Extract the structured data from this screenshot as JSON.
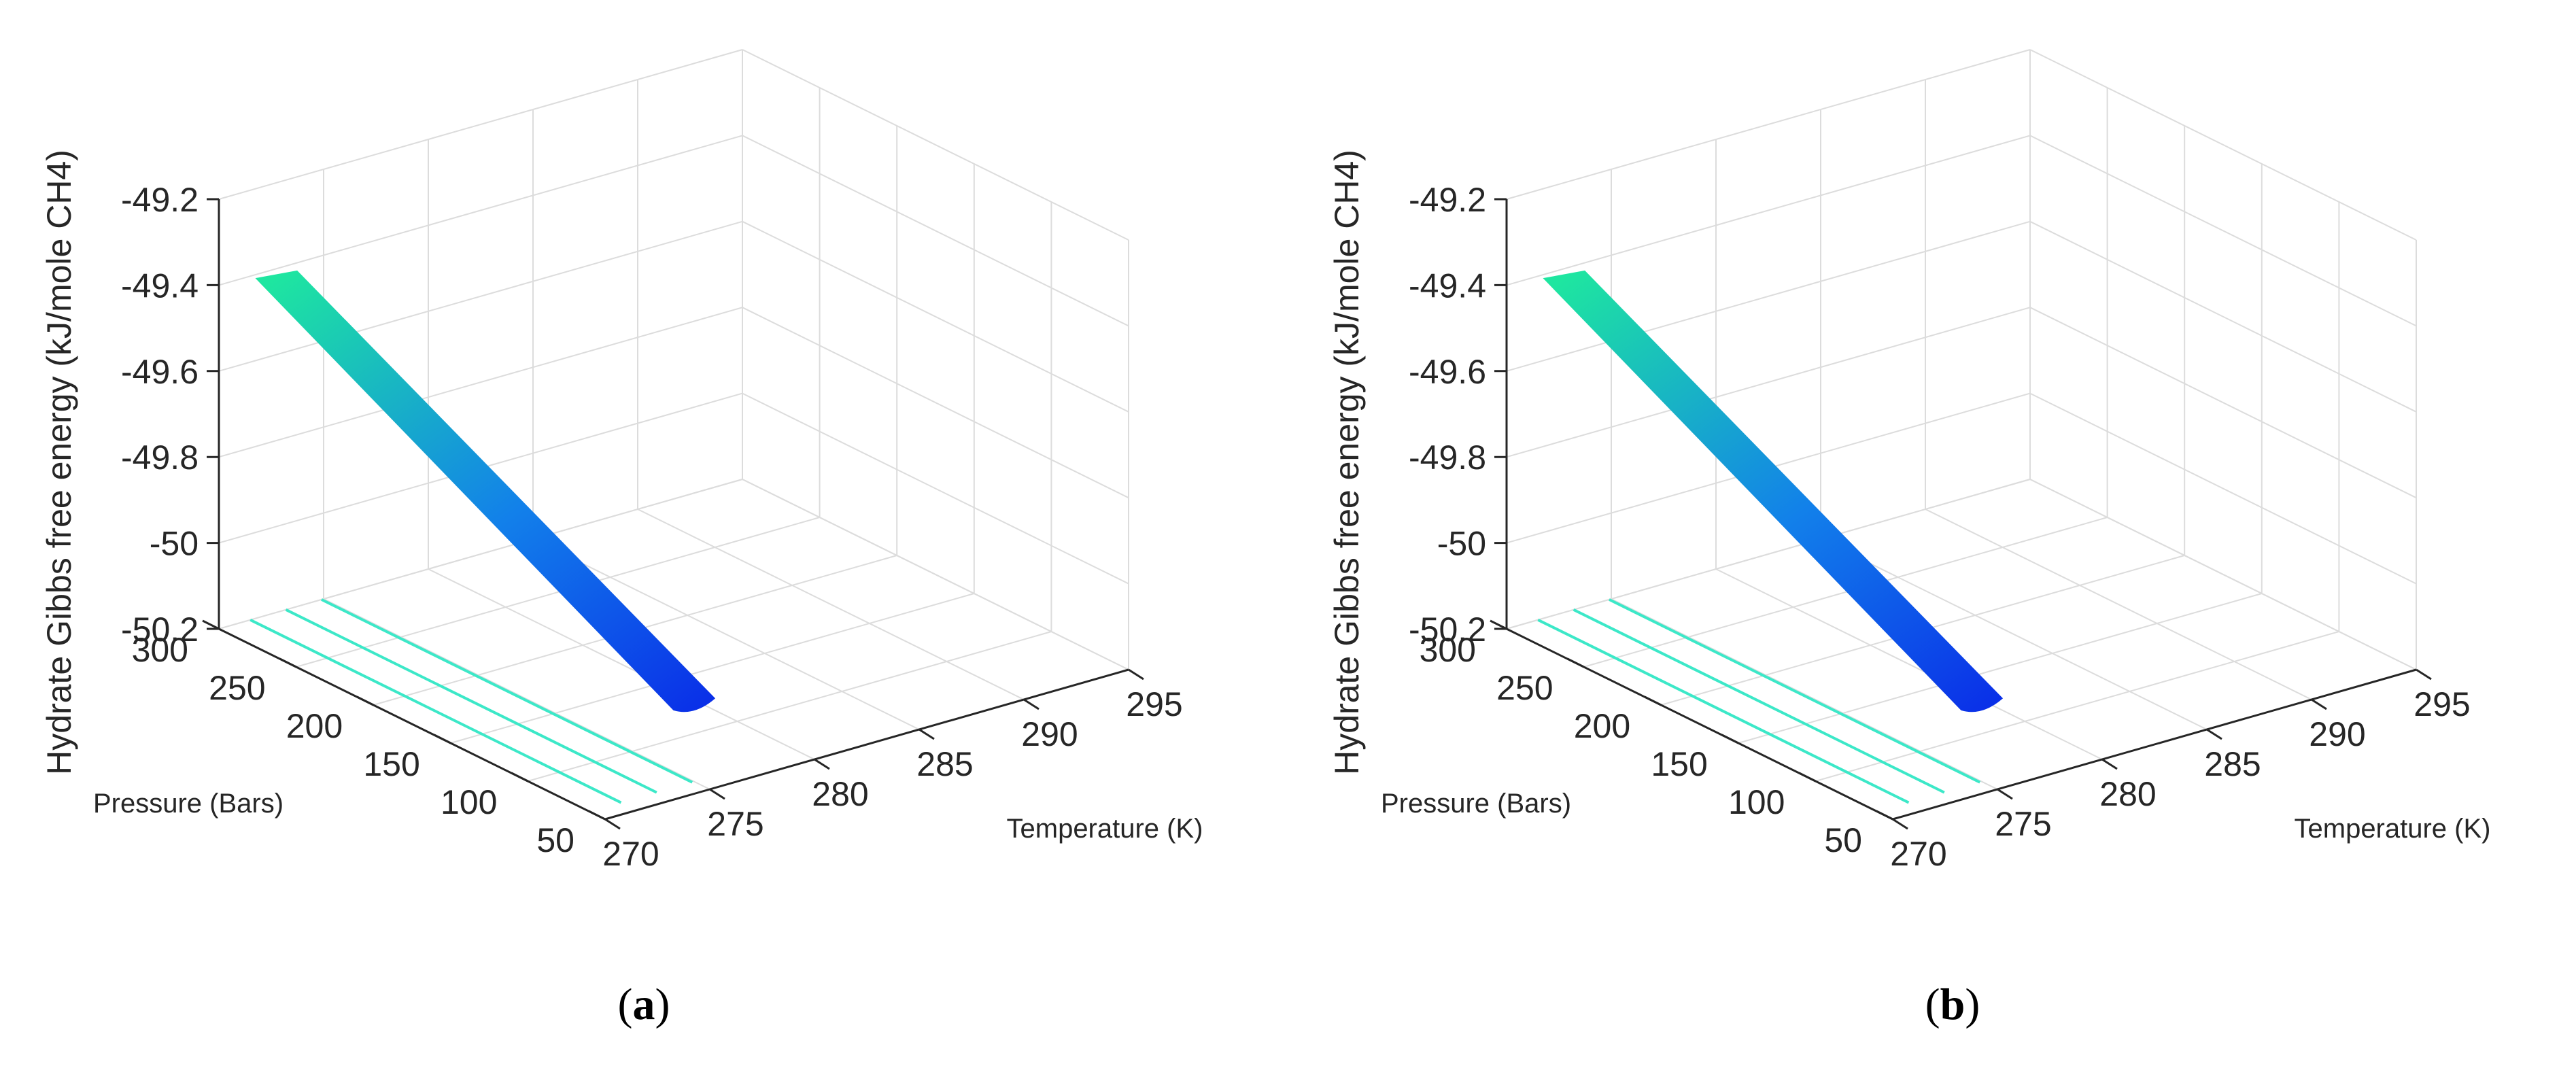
{
  "colors": {
    "grid": "#dcdcdc",
    "axis": "#262626",
    "surface_low": "#0a2fe8",
    "surface_mid": "#1280ea",
    "surface_high": "#1ee6a0",
    "contour": "#3ce8c8"
  },
  "chart_data": [
    {
      "type": "surface3d",
      "panel_label": "a",
      "xlabel": "Temperature (K)",
      "ylabel": "Pressure (Bars)",
      "zlabel": "Hydrate Gibbs free energy (kJ/mole CH4)",
      "xlim": [
        270,
        295
      ],
      "ylim": [
        50,
        300
      ],
      "zlim": [
        -50.2,
        -49.2
      ],
      "xticks": [
        270,
        275,
        280,
        285,
        290,
        295
      ],
      "yticks": [
        50,
        100,
        150,
        200,
        250,
        300
      ],
      "zticks": [
        -50.2,
        -50,
        -49.8,
        -49.6,
        -49.4,
        -49.2
      ],
      "xtick_labels": [
        "270",
        "275",
        "280",
        "285",
        "290",
        "295"
      ],
      "ytick_labels": [
        "50",
        "100",
        "150",
        "200",
        "250",
        "300"
      ],
      "ztick_labels": [
        "-50.2",
        "-50",
        "-49.8",
        "-49.6",
        "-49.4",
        "-49.2"
      ],
      "grid": true,
      "surface": {
        "corners": [
          {
            "T": 271,
            "P": 290,
            "G": -49.38
          },
          {
            "T": 274,
            "P": 60,
            "G": -50.02
          },
          {
            "T": 276,
            "P": 60,
            "G": -50.02
          },
          {
            "T": 273,
            "P": 290,
            "G": -49.39
          }
        ],
        "description_of_trend": "G decreases with decreasing pressure"
      },
      "contour_lines": [
        {
          "T": 271.5,
          "P_range": [
            60,
            300
          ]
        },
        {
          "T": 273.2,
          "P_range": [
            60,
            300
          ]
        },
        {
          "T": 274.9,
          "P_range": [
            60,
            300
          ]
        }
      ]
    },
    {
      "type": "surface3d",
      "panel_label": "b",
      "xlabel": "Temperature (K)",
      "ylabel": "Pressure (Bars)",
      "zlabel": "Hydrate Gibbs free energy (kJ/mole CH4)",
      "xlim": [
        270,
        295
      ],
      "ylim": [
        50,
        300
      ],
      "zlim": [
        -50.2,
        -49.2
      ],
      "xticks": [
        270,
        275,
        280,
        285,
        290,
        295
      ],
      "yticks": [
        50,
        100,
        150,
        200,
        250,
        300
      ],
      "zticks": [
        -50.2,
        -50,
        -49.8,
        -49.6,
        -49.4,
        -49.2
      ],
      "xtick_labels": [
        "270",
        "275",
        "280",
        "285",
        "290",
        "295"
      ],
      "ytick_labels": [
        "50",
        "100",
        "150",
        "200",
        "250",
        "300"
      ],
      "ztick_labels": [
        "-50.2",
        "-50",
        "-49.8",
        "-49.6",
        "-49.4",
        "-49.2"
      ],
      "grid": true,
      "surface": {
        "corners": [
          {
            "T": 271,
            "P": 290,
            "G": -49.38
          },
          {
            "T": 274,
            "P": 60,
            "G": -50.02
          },
          {
            "T": 276,
            "P": 60,
            "G": -50.02
          },
          {
            "T": 273,
            "P": 290,
            "G": -49.39
          }
        ],
        "description_of_trend": "G decreases with decreasing pressure"
      },
      "contour_lines": [
        {
          "T": 271.5,
          "P_range": [
            60,
            300
          ]
        },
        {
          "T": 273.2,
          "P_range": [
            60,
            300
          ]
        },
        {
          "T": 274.9,
          "P_range": [
            60,
            300
          ]
        }
      ]
    }
  ],
  "captions": [
    {
      "open": "(",
      "label": "a",
      "close": ")"
    },
    {
      "open": "(",
      "label": "b",
      "close": ")"
    }
  ]
}
